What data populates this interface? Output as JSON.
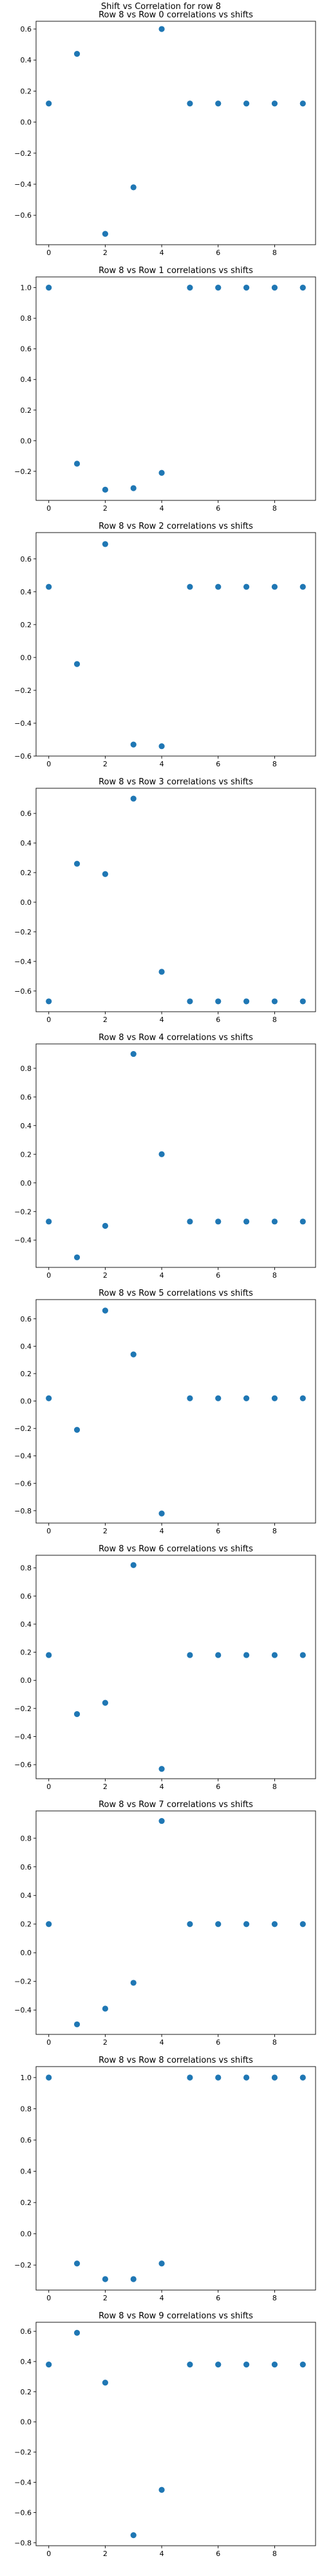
{
  "suptitle": "Shift vs Correlation for row 8",
  "marker_color": "#1f77b4",
  "chart_data": [
    {
      "type": "scatter",
      "title": "Row 8 vs Row 0 correlations vs shifts",
      "x": [
        0,
        1,
        2,
        3,
        4,
        5,
        6,
        7,
        8,
        9
      ],
      "y": [
        0.12,
        0.44,
        -0.72,
        -0.42,
        0.6,
        0.12,
        0.12,
        0.12,
        0.12,
        0.12
      ],
      "xlim": [
        -0.45,
        9.45
      ],
      "ylim": [
        -0.79,
        0.65
      ],
      "xticks": [
        0,
        2,
        4,
        6,
        8
      ],
      "yticks": [
        0.6,
        0.4,
        0.2,
        0.0,
        -0.2,
        -0.4,
        -0.6
      ]
    },
    {
      "type": "scatter",
      "title": "Row 8 vs Row 1 correlations vs shifts",
      "x": [
        0,
        1,
        2,
        3,
        4,
        5,
        6,
        7,
        8,
        9
      ],
      "y": [
        1.0,
        -0.15,
        -0.32,
        -0.31,
        -0.21,
        1.0,
        1.0,
        1.0,
        1.0,
        1.0
      ],
      "xlim": [
        -0.45,
        9.45
      ],
      "ylim": [
        -0.39,
        1.07
      ],
      "xticks": [
        0,
        2,
        4,
        6,
        8
      ],
      "yticks": [
        1.0,
        0.8,
        0.6,
        0.4,
        0.2,
        0.0,
        -0.2
      ]
    },
    {
      "type": "scatter",
      "title": "Row 8 vs Row 2 correlations vs shifts",
      "x": [
        0,
        1,
        2,
        3,
        4,
        5,
        6,
        7,
        8,
        9
      ],
      "y": [
        0.43,
        -0.04,
        0.69,
        -0.53,
        -0.54,
        0.43,
        0.43,
        0.43,
        0.43,
        0.43
      ],
      "xlim": [
        -0.45,
        9.45
      ],
      "ylim": [
        -0.6,
        0.76
      ],
      "xticks": [
        0,
        2,
        4,
        6,
        8
      ],
      "yticks": [
        0.6,
        0.4,
        0.2,
        0.0,
        -0.2,
        -0.4,
        -0.6
      ]
    },
    {
      "type": "scatter",
      "title": "Row 8 vs Row 3 correlations vs shifts",
      "x": [
        0,
        1,
        2,
        3,
        4,
        5,
        6,
        7,
        8,
        9
      ],
      "y": [
        -0.67,
        0.26,
        0.19,
        0.7,
        -0.47,
        -0.67,
        -0.67,
        -0.67,
        -0.67,
        -0.67
      ],
      "xlim": [
        -0.45,
        9.45
      ],
      "ylim": [
        -0.74,
        0.77
      ],
      "xticks": [
        0,
        2,
        4,
        6,
        8
      ],
      "yticks": [
        0.6,
        0.4,
        0.2,
        0.0,
        -0.2,
        -0.4,
        -0.6
      ]
    },
    {
      "type": "scatter",
      "title": "Row 8 vs Row 4 correlations vs shifts",
      "x": [
        0,
        1,
        2,
        3,
        4,
        5,
        6,
        7,
        8,
        9
      ],
      "y": [
        -0.27,
        -0.52,
        -0.3,
        0.9,
        0.2,
        -0.27,
        -0.27,
        -0.27,
        -0.27,
        -0.27
      ],
      "xlim": [
        -0.45,
        9.45
      ],
      "ylim": [
        -0.59,
        0.97
      ],
      "xticks": [
        0,
        2,
        4,
        6,
        8
      ],
      "yticks": [
        0.8,
        0.6,
        0.4,
        0.2,
        0.0,
        -0.2,
        -0.4
      ]
    },
    {
      "type": "scatter",
      "title": "Row 8 vs Row 5 correlations vs shifts",
      "x": [
        0,
        1,
        2,
        3,
        4,
        5,
        6,
        7,
        8,
        9
      ],
      "y": [
        0.02,
        -0.21,
        0.66,
        0.34,
        -0.82,
        0.02,
        0.02,
        0.02,
        0.02,
        0.02
      ],
      "xlim": [
        -0.45,
        9.45
      ],
      "ylim": [
        -0.89,
        0.74
      ],
      "xticks": [
        0,
        2,
        4,
        6,
        8
      ],
      "yticks": [
        0.6,
        0.4,
        0.2,
        0.0,
        -0.2,
        -0.4,
        -0.6,
        -0.8
      ]
    },
    {
      "type": "scatter",
      "title": "Row 8 vs Row 6 correlations vs shifts",
      "x": [
        0,
        1,
        2,
        3,
        4,
        5,
        6,
        7,
        8,
        9
      ],
      "y": [
        0.18,
        -0.24,
        -0.16,
        0.82,
        -0.63,
        0.18,
        0.18,
        0.18,
        0.18,
        0.18
      ],
      "xlim": [
        -0.45,
        9.45
      ],
      "ylim": [
        -0.7,
        0.89
      ],
      "xticks": [
        0,
        2,
        4,
        6,
        8
      ],
      "yticks": [
        0.8,
        0.6,
        0.4,
        0.2,
        0.0,
        -0.2,
        -0.4,
        -0.6
      ]
    },
    {
      "type": "scatter",
      "title": "Row 8 vs Row 7 correlations vs shifts",
      "x": [
        0,
        1,
        2,
        3,
        4,
        5,
        6,
        7,
        8,
        9
      ],
      "y": [
        0.2,
        -0.5,
        -0.39,
        -0.21,
        0.92,
        0.2,
        0.2,
        0.2,
        0.2,
        0.2
      ],
      "xlim": [
        -0.45,
        9.45
      ],
      "ylim": [
        -0.57,
        0.99
      ],
      "xticks": [
        0,
        2,
        4,
        6,
        8
      ],
      "yticks": [
        0.8,
        0.6,
        0.4,
        0.2,
        0.0,
        -0.2,
        -0.4
      ]
    },
    {
      "type": "scatter",
      "title": "Row 8 vs Row 8 correlations vs shifts",
      "x": [
        0,
        1,
        2,
        3,
        4,
        5,
        6,
        7,
        8,
        9
      ],
      "y": [
        1.0,
        -0.19,
        -0.29,
        -0.29,
        -0.19,
        1.0,
        1.0,
        1.0,
        1.0,
        1.0
      ],
      "xlim": [
        -0.45,
        9.45
      ],
      "ylim": [
        -0.36,
        1.07
      ],
      "xticks": [
        0,
        2,
        4,
        6,
        8
      ],
      "yticks": [
        1.0,
        0.8,
        0.6,
        0.4,
        0.2,
        0.0,
        -0.2
      ]
    },
    {
      "type": "scatter",
      "title": "Row 8 vs Row 9 correlations vs shifts",
      "x": [
        0,
        1,
        2,
        3,
        4,
        5,
        6,
        7,
        8,
        9
      ],
      "y": [
        0.38,
        0.59,
        0.26,
        -0.75,
        -0.45,
        0.38,
        0.38,
        0.38,
        0.38,
        0.38
      ],
      "xlim": [
        -0.45,
        9.45
      ],
      "ylim": [
        -0.82,
        0.66
      ],
      "xticks": [
        0,
        2,
        4,
        6,
        8
      ],
      "yticks": [
        0.6,
        0.4,
        0.2,
        0.0,
        -0.2,
        -0.4,
        -0.6,
        -0.8
      ]
    }
  ]
}
